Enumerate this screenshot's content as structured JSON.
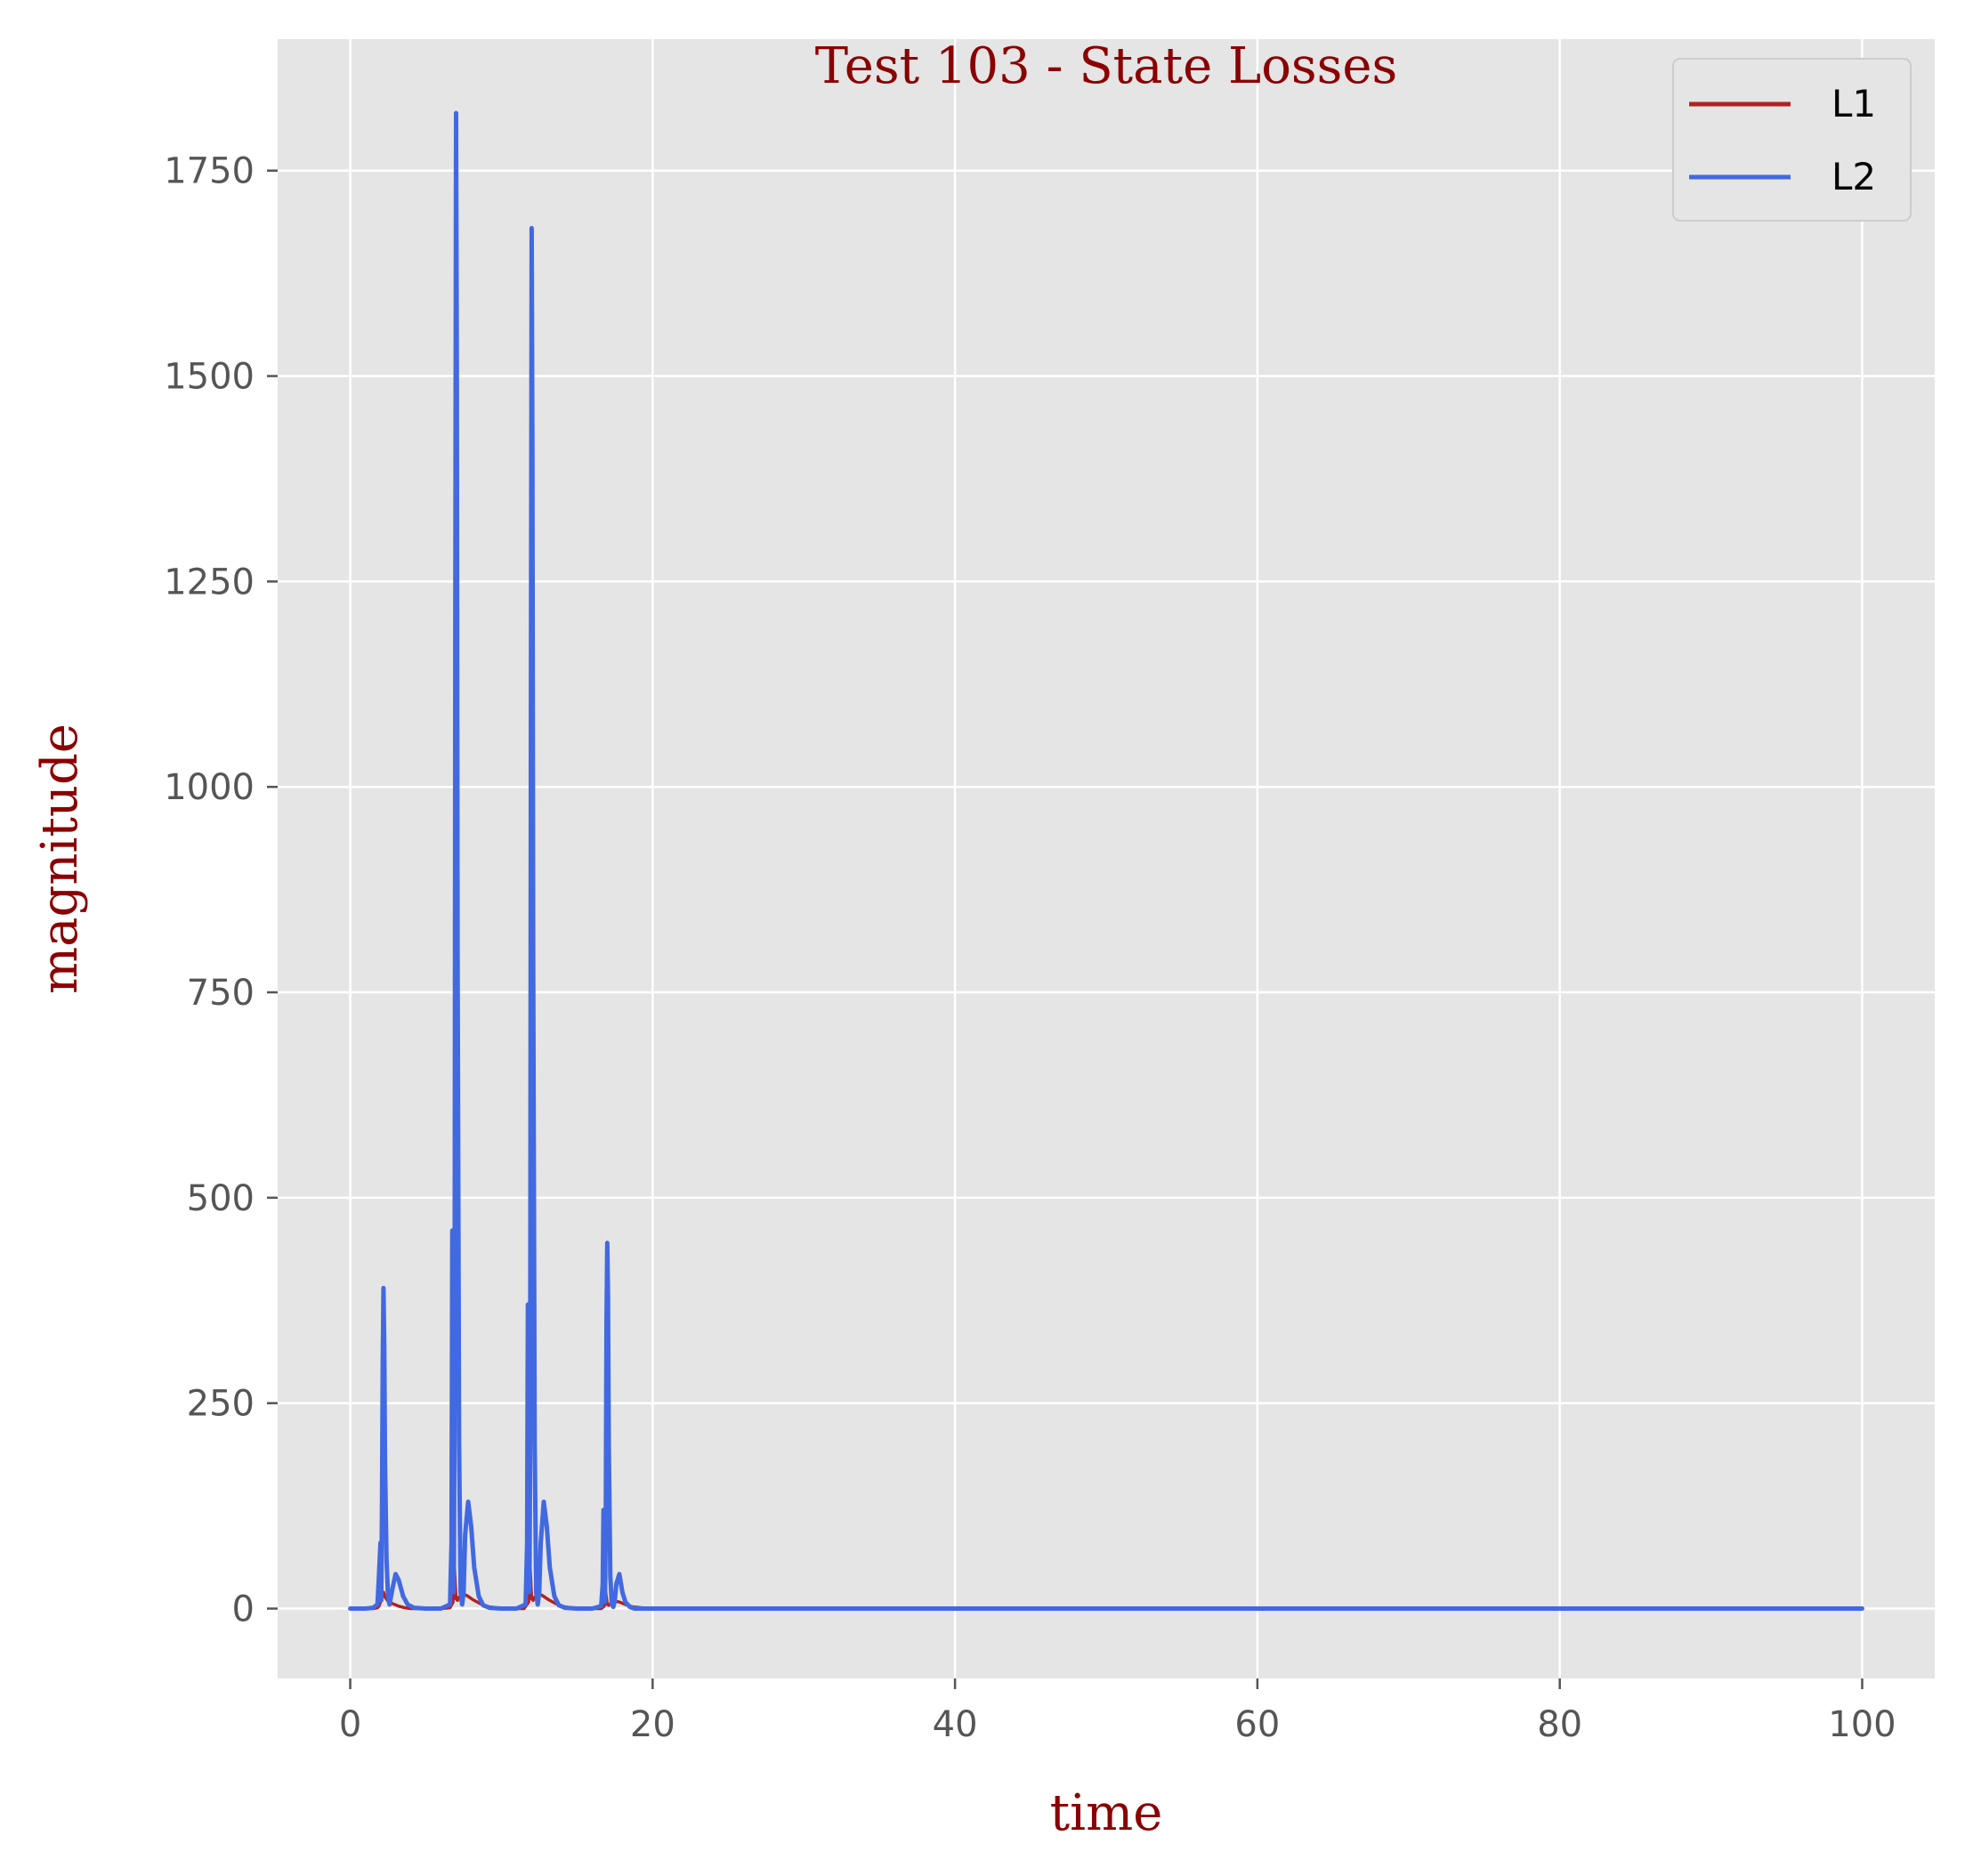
{
  "chart_data": {
    "type": "line",
    "title": "Test 103 - State Losses",
    "xlabel": "time",
    "ylabel": "magnitude",
    "xlim": [
      -4.8,
      104.8
    ],
    "ylim": [
      -85,
      1910
    ],
    "x_ticks": [
      0,
      20,
      40,
      60,
      80,
      100
    ],
    "y_ticks": [
      0,
      250,
      500,
      750,
      1000,
      1250,
      1500,
      1750
    ],
    "x_tick_labels": [
      "0",
      "20",
      "40",
      "60",
      "80",
      "100"
    ],
    "y_tick_labels": [
      "0",
      "250",
      "500",
      "750",
      "1000",
      "1250",
      "1500",
      "1750"
    ],
    "grid": true,
    "legend_position": "top-right",
    "colors": {
      "background": "#e5e5e5",
      "grid": "#ffffff",
      "title": "#8b0000",
      "axis_title": "#8b0000",
      "tick_label": "#555555"
    },
    "series": [
      {
        "name": "L1",
        "color": "#b22222",
        "x": [
          0,
          1.5,
          1.8,
          1.9,
          2.0,
          2.1,
          2.2,
          2.3,
          2.5,
          2.8,
          3.2,
          3.6,
          4.0,
          5.0,
          6.0,
          6.6,
          6.8,
          6.9,
          7.0,
          7.1,
          7.2,
          7.4,
          7.7,
          8.1,
          8.6,
          9.2,
          10.0,
          11.0,
          11.5,
          11.8,
          11.9,
          12.0,
          12.1,
          12.2,
          12.4,
          12.7,
          13.1,
          13.6,
          14.2,
          15.0,
          16.0,
          16.6,
          16.8,
          16.9,
          17.0,
          17.1,
          17.2,
          17.5,
          17.8,
          18.2,
          18.7,
          19.3,
          20.0,
          25,
          30,
          40,
          50,
          60,
          70,
          80,
          90,
          100
        ],
        "values": [
          0,
          0,
          1,
          3,
          8,
          15,
          20,
          14,
          9,
          6,
          3,
          1,
          0,
          0,
          0,
          1,
          8,
          48,
          12,
          10,
          14,
          18,
          16,
          11,
          6,
          2,
          0,
          0,
          0,
          8,
          50,
          12,
          10,
          14,
          18,
          16,
          11,
          6,
          2,
          0,
          0,
          0,
          3,
          20,
          5,
          4,
          6,
          9,
          8,
          5,
          2,
          1,
          0,
          0,
          0,
          0,
          0,
          0,
          0,
          0,
          0,
          0
        ]
      },
      {
        "name": "L2",
        "color": "#4169e1",
        "x": [
          0,
          1.0,
          1.5,
          1.8,
          1.9,
          2.0,
          2.05,
          2.1,
          2.15,
          2.2,
          2.25,
          2.3,
          2.4,
          2.5,
          2.6,
          2.8,
          3.0,
          3.2,
          3.5,
          3.8,
          4.2,
          5.0,
          6.0,
          6.6,
          6.7,
          6.75,
          6.8,
          6.85,
          6.9,
          6.95,
          7.0,
          7.05,
          7.1,
          7.2,
          7.3,
          7.4,
          7.5,
          7.6,
          7.8,
          8.0,
          8.2,
          8.5,
          8.8,
          9.2,
          10.0,
          11.0,
          11.6,
          11.7,
          11.75,
          11.8,
          11.85,
          11.9,
          11.95,
          12.0,
          12.05,
          12.1,
          12.2,
          12.3,
          12.4,
          12.5,
          12.6,
          12.8,
          13.0,
          13.2,
          13.5,
          13.8,
          14.2,
          15.0,
          16.0,
          16.6,
          16.7,
          16.75,
          16.8,
          16.85,
          16.9,
          16.95,
          17.0,
          17.05,
          17.1,
          17.2,
          17.3,
          17.4,
          17.5,
          17.6,
          17.8,
          18.0,
          18.2,
          18.5,
          18.8,
          19.2,
          20.0,
          25,
          30,
          40,
          50,
          60,
          70,
          80,
          90,
          100
        ],
        "values": [
          0,
          0,
          1,
          5,
          40,
          80,
          10,
          120,
          300,
          390,
          320,
          180,
          60,
          15,
          5,
          25,
          42,
          35,
          15,
          5,
          1,
          0,
          0,
          5,
          80,
          460,
          30,
          20,
          250,
          1200,
          1820,
          1500,
          800,
          200,
          20,
          5,
          20,
          90,
          130,
          100,
          50,
          15,
          4,
          1,
          0,
          0,
          5,
          80,
          370,
          30,
          20,
          200,
          1100,
          1680,
          1400,
          800,
          200,
          20,
          5,
          20,
          80,
          130,
          100,
          50,
          15,
          4,
          1,
          0,
          0,
          3,
          30,
          120,
          10,
          8,
          100,
          350,
          445,
          380,
          200,
          40,
          5,
          2,
          10,
          30,
          42,
          20,
          8,
          2,
          0,
          0,
          0,
          0,
          0,
          0,
          0,
          0,
          0,
          0,
          0,
          0
        ]
      }
    ]
  }
}
